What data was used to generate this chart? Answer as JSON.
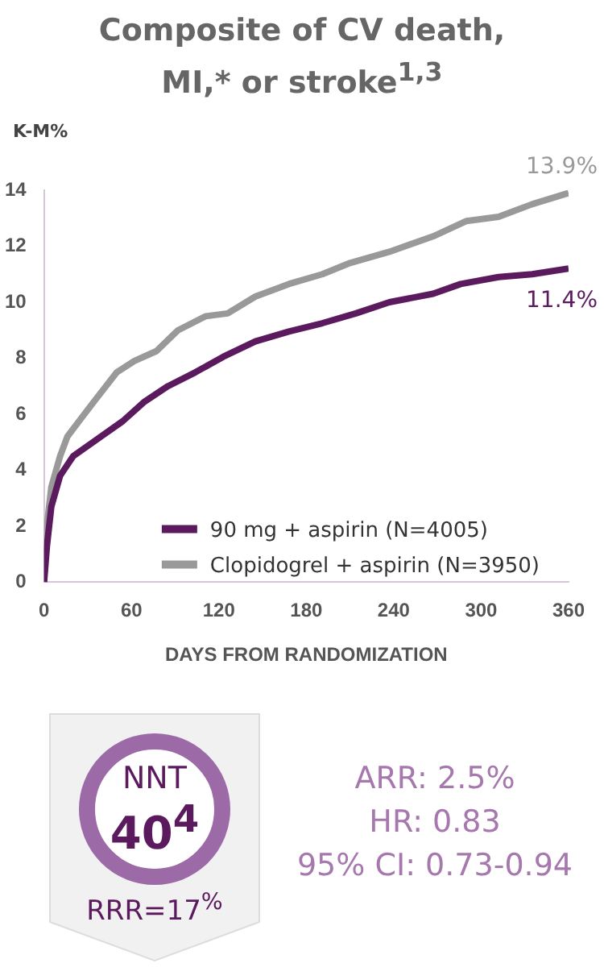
{
  "chart_data": {
    "type": "line",
    "title": "Composite of CV death, MI,* or stroke$^{1,3}$",
    "ylabel": "K-M%",
    "xlabel": "DAYS FROM RANDOMIZATION",
    "xlim": [
      0,
      360
    ],
    "xticks": [
      0,
      60,
      120,
      180,
      240,
      300,
      360
    ],
    "ylim": [
      0,
      14
    ],
    "yticks": [
      0,
      2,
      4,
      6,
      8,
      10,
      12,
      14
    ],
    "grid": false,
    "legend": "bottom right",
    "marker": "none",
    "line_style": "solid",
    "series": [
      {
        "name": "90 mg + aspirin (N=4005)",
        "color": "#5c1a5e",
        "x": [
          0,
          2,
          5,
          11,
          20,
          39,
          54,
          69,
          85,
          104,
          123,
          145,
          168,
          191,
          214,
          237,
          267,
          286,
          312,
          335,
          360
        ],
        "values": [
          0,
          1.3,
          2.7,
          3.8,
          4.5,
          5.2,
          5.75,
          6.45,
          7.0,
          7.5,
          8.05,
          8.6,
          8.95,
          9.25,
          9.6,
          10.0,
          10.3,
          10.65,
          10.9,
          11.0,
          11.2
        ]
      },
      {
        "name": "Clopidogrel + aspirin (N=3950)",
        "color": "#999999",
        "x": [
          0,
          1,
          5,
          11,
          16,
          24,
          35,
          50,
          62,
          77,
          92,
          111,
          126,
          145,
          168,
          191,
          210,
          237,
          267,
          290,
          312,
          335,
          360
        ],
        "values": [
          0,
          1.6,
          3.4,
          4.5,
          5.2,
          5.75,
          6.5,
          7.5,
          7.9,
          8.25,
          9.0,
          9.5,
          9.6,
          10.2,
          10.65,
          11.0,
          11.4,
          11.8,
          12.35,
          12.9,
          13.05,
          13.5,
          13.9
        ]
      }
    ],
    "annotations": [
      {
        "text": "13.9%",
        "x": 360,
        "y": 13.9
      },
      {
        "text": "11.4%",
        "x": 360,
        "y": 11.2
      },
      "NNT",
      "40$^{4}$",
      "RRR=17$^{%}$",
      "ARR: 2.5%",
      "HR: 0.83",
      "95% CI: 0.73-0.94"
    ]
  }
}
